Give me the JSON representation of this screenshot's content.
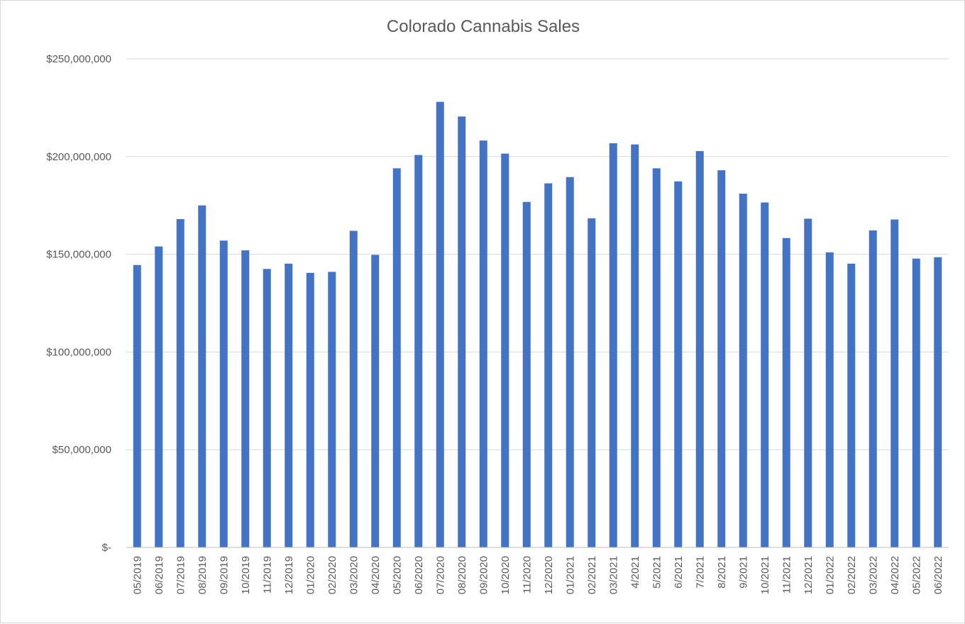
{
  "chart_data": {
    "type": "bar",
    "title": "Colorado Cannabis Sales",
    "xlabel": "",
    "ylabel": "",
    "ylim": [
      0,
      250000000
    ],
    "y_ticks": [
      0,
      50000000,
      100000000,
      150000000,
      200000000,
      250000000
    ],
    "y_tick_labels": [
      "$-",
      "$50,000,000",
      "$100,000,000",
      "$150,000,000",
      "$200,000,000",
      "$250,000,000"
    ],
    "grid": "horizontal",
    "legend": "none",
    "bar_color": "#4472C4",
    "categories": [
      "05/2019",
      "06/2019",
      "07/2019",
      "08/2019",
      "09/2019",
      "10/2019",
      "11/2019",
      "12/2019",
      "01/2020",
      "02/2020",
      "03/2020",
      "04/2020",
      "05/2020",
      "06/2020",
      "07/2020",
      "08/2020",
      "09/2020",
      "10/2020",
      "11/2020",
      "12/2020",
      "01/2021",
      "02/2021",
      "03/2021",
      "4/2021",
      "5/2021",
      "6/2021",
      "7/2021",
      "8/2021",
      "9/2021",
      "10/2021",
      "11/2021",
      "12/2021",
      "01/2022",
      "02/2022",
      "03/2022",
      "04/2022",
      "05/2022",
      "06/2022"
    ],
    "values": [
      144500000,
      154000000,
      168000000,
      175000000,
      157000000,
      152000000,
      142500000,
      145200000,
      140500000,
      141000000,
      162000000,
      149700000,
      194000000,
      200800000,
      228000000,
      220500000,
      208200000,
      201500000,
      176800000,
      186300000,
      189500000,
      168400000,
      206800000,
      206200000,
      194000000,
      187300000,
      202800000,
      193000000,
      181000000,
      176500000,
      158300000,
      168200000,
      151000000,
      145200000,
      162200000,
      167800000,
      147800000,
      148500000
    ]
  }
}
